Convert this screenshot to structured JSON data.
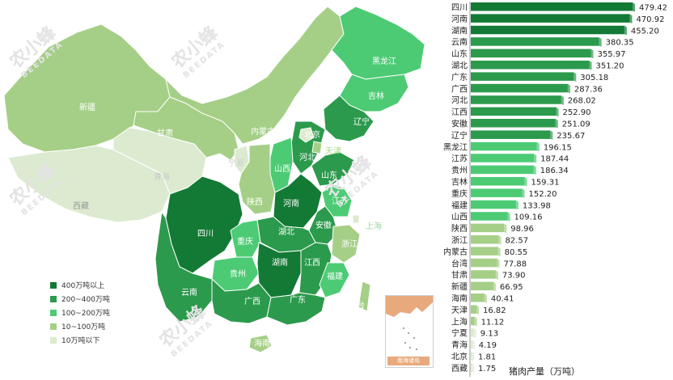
{
  "map": {
    "provinces": {
      "xinjiang": "新疆",
      "xizang": "西藏",
      "qinghai": "青海",
      "gansu": "甘肃",
      "neimenggu": "内蒙古",
      "heilongjiang": "黑龙江",
      "jilin": "吉林",
      "liaoning": "辽宁",
      "beijing": "北京",
      "tianjin": "天津",
      "hebei": "河北",
      "shanxi": "山西",
      "shandong": "山东",
      "ningxia": "宁夏",
      "shaanxi": "陕西",
      "henan": "河南",
      "jiangsu": "江苏",
      "shanghai": "上海",
      "anhui": "安徽",
      "hubei": "湖北",
      "sichuan": "四川",
      "chongqing": "重庆",
      "zhejiang": "浙江",
      "guizhou": "贵州",
      "hunan": "湖南",
      "jiangxi": "江西",
      "fujian": "福建",
      "taiwan": "台湾",
      "yunnan": "云南",
      "guangxi": "广西",
      "guangdong": "广东",
      "hainan": "海南"
    },
    "inset_caption": "南海诸岛",
    "legend": [
      {
        "label": "400万吨以上",
        "color": "#137a35"
      },
      {
        "label": "200~400万吨",
        "color": "#2b9a4c"
      },
      {
        "label": "100~200万吨",
        "color": "#4ccb74"
      },
      {
        "label": "10~100万吨",
        "color": "#a5cf87"
      },
      {
        "label": "10万吨以下",
        "color": "#dcebd0"
      }
    ],
    "watermark": {
      "cn": "农小蜂",
      "en": "BEEDATA"
    }
  },
  "chart_data": {
    "type": "bar",
    "orientation": "horizontal",
    "categories": [
      "四川",
      "河南",
      "湖南",
      "云南",
      "山东",
      "湖北",
      "广东",
      "广西",
      "河北",
      "江西",
      "安徽",
      "辽宁",
      "黑龙江",
      "江苏",
      "贵州",
      "吉林",
      "重庆",
      "福建",
      "山西",
      "陕西",
      "浙江",
      "内蒙古",
      "台湾",
      "甘肃",
      "新疆",
      "海南",
      "天津",
      "上海",
      "宁夏",
      "青海",
      "北京",
      "西藏"
    ],
    "values": [
      479.42,
      470.92,
      455.2,
      380.35,
      355.97,
      351.2,
      305.18,
      287.36,
      268.02,
      252.9,
      251.09,
      235.67,
      196.15,
      187.44,
      186.34,
      159.31,
      152.2,
      133.98,
      109.16,
      98.96,
      82.57,
      80.55,
      77.88,
      73.9,
      66.95,
      40.41,
      16.82,
      11.12,
      9.13,
      4.19,
      1.81,
      1.75
    ],
    "value_labels": [
      "479.42",
      "470.92",
      "455.20",
      "380.35",
      "355.97",
      "351.20",
      "305.18",
      "287.36",
      "268.02",
      "252.90",
      "251.09",
      "235.67",
      "196.15",
      "187.44",
      "186.34",
      "159.31",
      "152.20",
      "133.98",
      "109.16",
      "98.96",
      "82.57",
      "80.55",
      "77.88",
      "73.90",
      "66.95",
      "40.41",
      "16.82",
      "11.12",
      "9.13",
      "4.19",
      "1.81",
      "1.75"
    ],
    "xlabel": "猪肉产量（万吨）",
    "colors": {
      "high": "#137a35",
      "mid": "#2b9a4c",
      "low": "#4ccb74",
      "small": "#a5cf87",
      "tiny": "#dcebd0"
    }
  }
}
